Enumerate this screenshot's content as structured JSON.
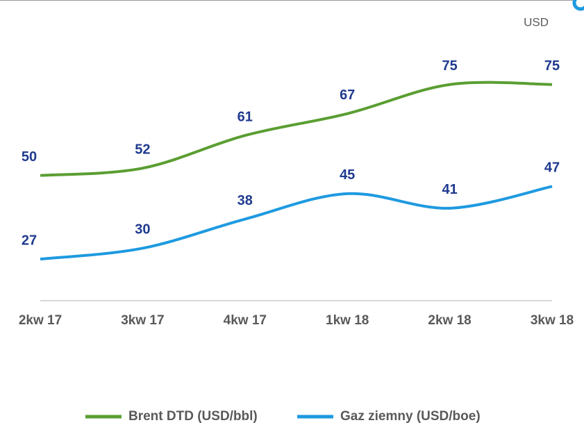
{
  "chart_data": {
    "type": "line",
    "y_label": "USD",
    "categories": [
      "2kw 17",
      "3kw 17",
      "4kw 17",
      "1kw 18",
      "2kw 18",
      "3kw 18"
    ],
    "series": [
      {
        "name": "Brent DTD (USD/bbl)",
        "color": "#5a9e32",
        "values": [
          50,
          52,
          61,
          67,
          75,
          75
        ]
      },
      {
        "name": "Gaz ziemny (USD/boe)",
        "color": "#1e9ae0",
        "values": [
          27,
          30,
          38,
          45,
          41,
          47
        ]
      }
    ],
    "ylim": [
      15,
      95
    ],
    "smooth": true
  }
}
